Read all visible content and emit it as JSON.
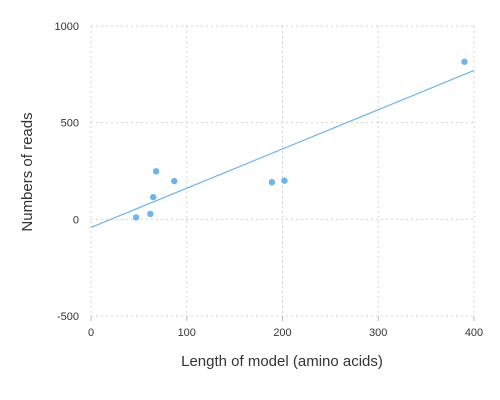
{
  "chart_data": {
    "type": "scatter",
    "title": "",
    "xlabel": "Length of model (amino acids)",
    "ylabel": "Numbers of reads",
    "xlim": [
      0,
      400
    ],
    "ylim": [
      -500,
      1000
    ],
    "grid": true,
    "xticks": [
      0,
      100,
      200,
      300,
      400
    ],
    "yticks": [
      -500,
      0,
      500,
      1000
    ],
    "xtick_labels": [
      "0",
      "100",
      "200",
      "300",
      "400"
    ],
    "ytick_labels": [
      "-500",
      "0",
      "500",
      "1000"
    ],
    "series": [
      {
        "color": "#6cb4ec",
        "points": [
          {
            "x": 47,
            "y": 10
          },
          {
            "x": 62,
            "y": 28
          },
          {
            "x": 65,
            "y": 115
          },
          {
            "x": 68,
            "y": 248
          },
          {
            "x": 87,
            "y": 198
          },
          {
            "x": 189,
            "y": 192
          },
          {
            "x": 202,
            "y": 200
          },
          {
            "x": 390,
            "y": 815
          }
        ]
      }
    ],
    "trendline": {
      "color": "#6cb4ec",
      "start": {
        "x": 0,
        "y": -42
      },
      "end": {
        "x": 400,
        "y": 770
      }
    }
  }
}
